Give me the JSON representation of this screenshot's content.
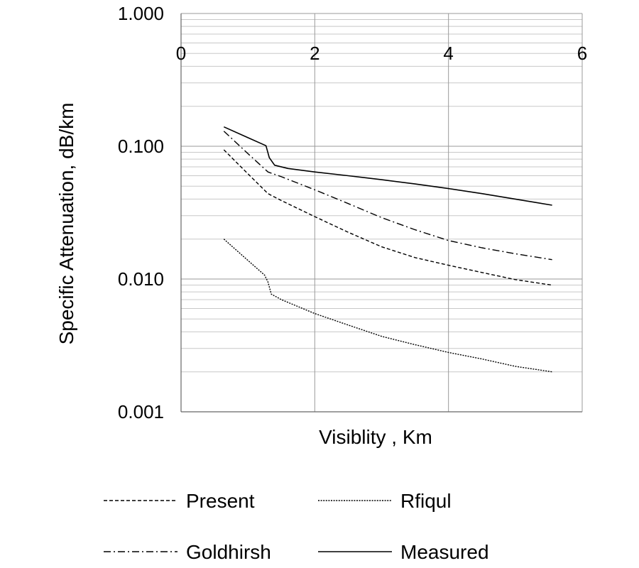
{
  "chart_data": {
    "type": "line",
    "title": "",
    "xlabel": "Visiblity , Km",
    "ylabel": "Specific Attenuation, dB/km",
    "xlim": [
      0,
      6
    ],
    "ylim": [
      0.001,
      1.0
    ],
    "yscale": "log",
    "x_ticks": [
      0,
      2,
      4,
      6
    ],
    "x_tick_labels": [
      "0",
      "2",
      "4",
      "6"
    ],
    "x_tick_position": "top",
    "y_ticks": [
      0.001,
      0.01,
      0.1,
      1.0
    ],
    "y_tick_labels": [
      "0.001",
      "0.010",
      "0.100",
      "1.000"
    ],
    "grid": true,
    "legend_position": "bottom",
    "series": [
      {
        "name": "Present",
        "style": "dashed",
        "x": [
          0.64,
          1.0,
          1.3,
          1.5,
          2.0,
          2.5,
          3.0,
          3.5,
          4.0,
          4.5,
          5.0,
          5.55
        ],
        "y": [
          0.094,
          0.062,
          0.044,
          0.039,
          0.0295,
          0.0225,
          0.0175,
          0.0145,
          0.0127,
          0.0112,
          0.0099,
          0.009
        ]
      },
      {
        "name": "Rfiqul",
        "style": "dotted",
        "x": [
          0.64,
          1.0,
          1.25,
          1.3,
          1.35,
          1.5,
          2.0,
          2.5,
          3.0,
          3.5,
          4.0,
          4.5,
          5.0,
          5.55
        ],
        "y": [
          0.02,
          0.0138,
          0.0107,
          0.0095,
          0.0077,
          0.007,
          0.0055,
          0.0045,
          0.0037,
          0.0032,
          0.0028,
          0.0025,
          0.0022,
          0.002
        ],
        "annotation": ""
      },
      {
        "name": "Goldhirsh",
        "style": "dash-dot",
        "x": [
          0.64,
          1.0,
          1.3,
          1.5,
          2.0,
          2.5,
          3.0,
          3.5,
          4.0,
          4.5,
          5.0,
          5.55
        ],
        "y": [
          0.13,
          0.088,
          0.064,
          0.059,
          0.047,
          0.037,
          0.029,
          0.0235,
          0.0195,
          0.0172,
          0.0155,
          0.014
        ]
      },
      {
        "name": "Measured",
        "style": "solid",
        "x": [
          0.64,
          1.0,
          1.27,
          1.32,
          1.4,
          1.6,
          2.0,
          2.5,
          3.0,
          3.5,
          4.0,
          4.5,
          5.0,
          5.55
        ],
        "y": [
          0.14,
          0.116,
          0.101,
          0.082,
          0.072,
          0.068,
          0.064,
          0.06,
          0.056,
          0.052,
          0.048,
          0.044,
          0.04,
          0.036
        ]
      }
    ]
  }
}
